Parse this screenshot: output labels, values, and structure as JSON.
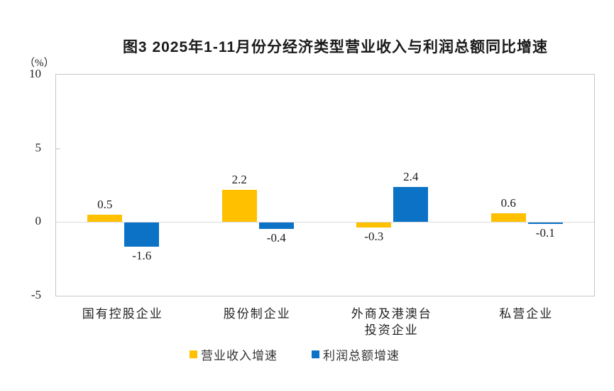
{
  "chart_data": {
    "type": "bar",
    "title": "图3  2025年1-11月份分经济类型营业收入与利润总额同比增速",
    "unit_label": "（%）",
    "categories": [
      "国有控股企业",
      "股份制企业",
      "外商及港澳台\n投资企业",
      "私营企业"
    ],
    "series": [
      {
        "name": "营业收入增速",
        "color": "#FFC000",
        "values": [
          0.5,
          2.2,
          -0.3,
          0.6
        ]
      },
      {
        "name": "利润总额增速",
        "color": "#0B72C5",
        "values": [
          -1.6,
          -0.4,
          2.4,
          -0.1
        ]
      }
    ],
    "ylim": [
      -5,
      10
    ],
    "yticks": [
      10,
      5,
      0,
      -5
    ],
    "grid": "zero-line-only",
    "legend_position": "bottom",
    "value_label_format": "one-decimal"
  }
}
